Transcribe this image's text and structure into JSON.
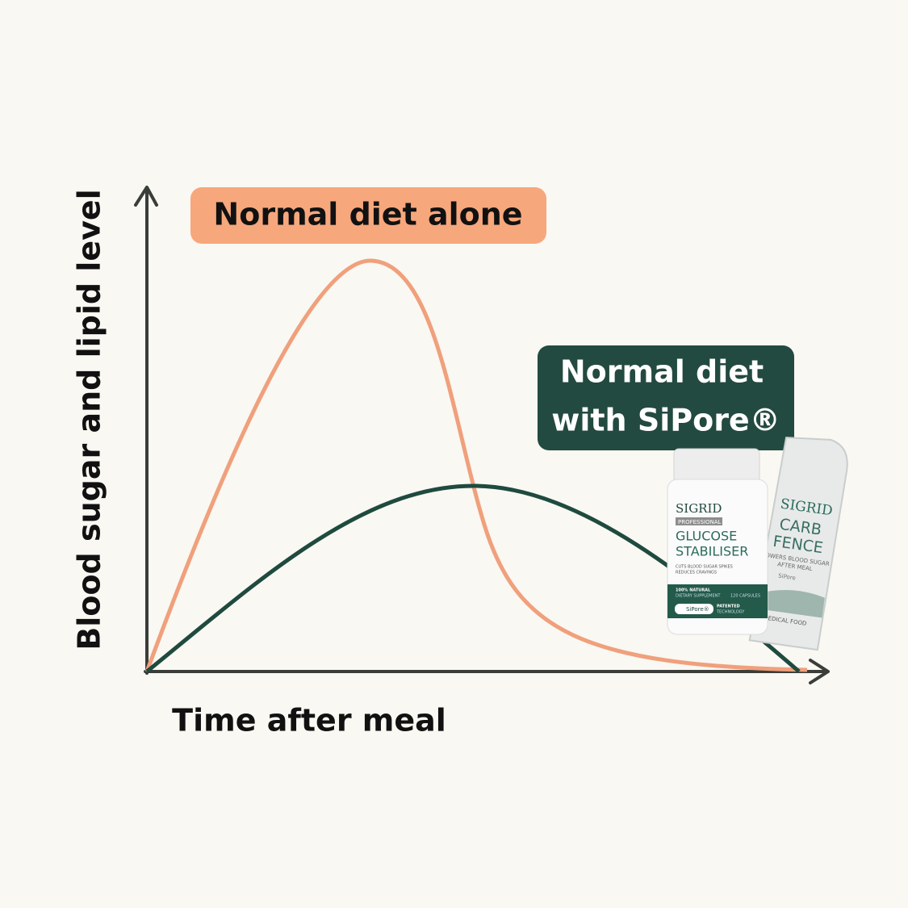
{
  "labels": {
    "y_axis": "Blood sugar and lipid level",
    "x_axis": "Time after meal"
  },
  "legend": {
    "normal": "Normal diet alone",
    "sipore": [
      "Normal diet",
      "with SiPore®"
    ]
  },
  "products": {
    "bottle": {
      "brand": "SIGRID",
      "line": "PROFESSIONAL",
      "name": [
        "GLUCOSE",
        "STABILISER"
      ],
      "claims": [
        "CUTS BLOOD SUGAR SPIKES",
        "REDUCES CRAVINGS"
      ],
      "natural": "100% NATURAL",
      "kind": "DIETARY SUPPLEMENT",
      "count": "120 CAPSULES",
      "tech": "SiPore®",
      "patent": [
        "PATENTED",
        "TECHNOLOGY"
      ]
    },
    "sachet": {
      "brand": "SIGRID",
      "name": [
        "CARB",
        "FENCE"
      ],
      "claims": [
        "LOWERS BLOOD SUGAR",
        "AFTER MEAL"
      ],
      "tech": "SiPore",
      "medical": "MEDICAL FOOD"
    }
  }
}
